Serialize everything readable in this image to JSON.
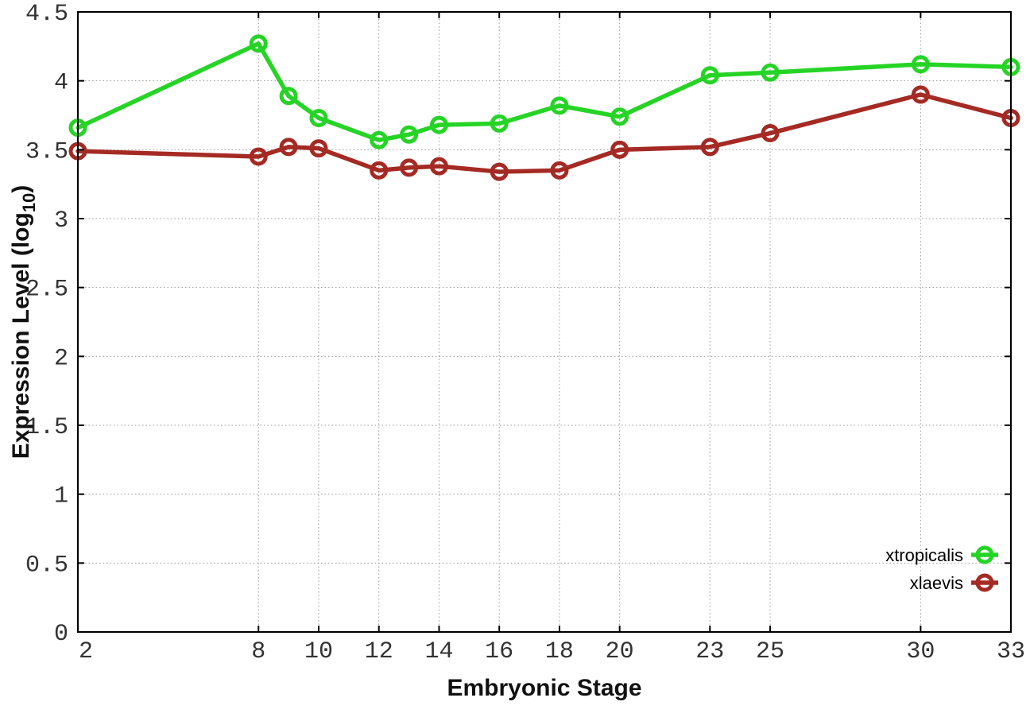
{
  "chart_data": {
    "type": "line",
    "title": "",
    "xlabel": "Embryonic Stage",
    "ylabel": "Expression Level (log10)",
    "ylabel_parts": {
      "main": "Expression Level (log",
      "sub": "10",
      "close": ")"
    },
    "xlim": [
      2,
      33
    ],
    "ylim": [
      0,
      4.5
    ],
    "xticks": [
      2,
      8,
      10,
      12,
      14,
      16,
      18,
      20,
      23,
      25,
      30,
      33
    ],
    "xtick_labels": [
      "2",
      "8",
      "10",
      "12",
      "14",
      "16",
      "18",
      "20",
      "23",
      "25",
      "30",
      "33"
    ],
    "yticks": [
      0,
      0.5,
      1,
      1.5,
      2,
      2.5,
      3,
      3.5,
      4,
      4.5
    ],
    "ytick_labels": [
      "0",
      "0.5",
      "1",
      "1.5",
      "2",
      "2.5",
      "3",
      "3.5",
      "4",
      "4.5"
    ],
    "grid": true,
    "legend_position": "bottom-right",
    "marker": "open-circle",
    "x": [
      2,
      8,
      9,
      10,
      12,
      13,
      14,
      16,
      18,
      20,
      23,
      25,
      30,
      33
    ],
    "series": [
      {
        "name": "xtropicalis",
        "color": "#25d425",
        "values": [
          3.66,
          4.27,
          3.89,
          3.73,
          3.57,
          3.61,
          3.68,
          3.69,
          3.82,
          3.74,
          4.04,
          4.06,
          4.12,
          4.1
        ]
      },
      {
        "name": "xlaevis",
        "color": "#a52a24",
        "values": [
          3.49,
          3.45,
          3.52,
          3.51,
          3.35,
          3.37,
          3.38,
          3.34,
          3.35,
          3.5,
          3.52,
          3.62,
          3.9,
          3.73
        ]
      }
    ],
    "colors": {
      "background": "#ffffff",
      "border": "#000000",
      "grid": "#999999",
      "tick_label": "#333333"
    }
  }
}
